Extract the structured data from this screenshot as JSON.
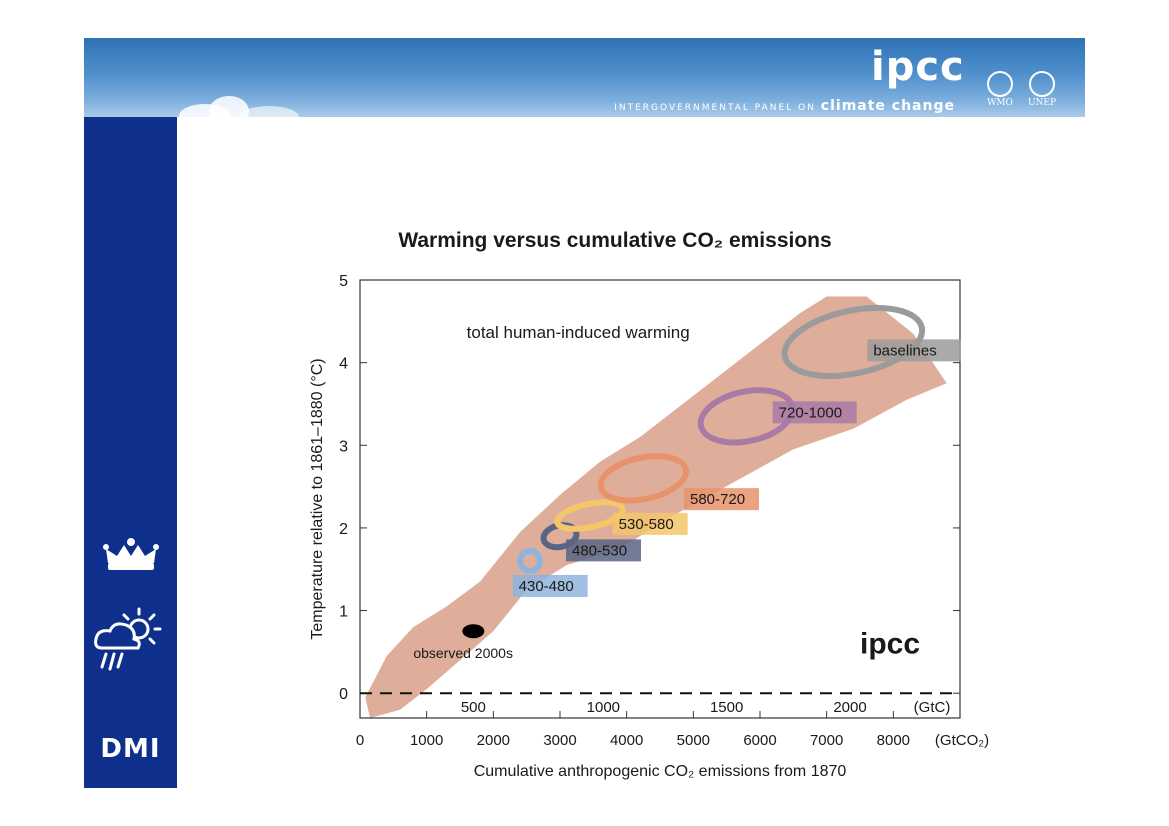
{
  "header": {
    "logo_text": "ipcc",
    "org_name": "INTERGOVERNMENTAL PANEL ON",
    "org_name_cc": "climate change",
    "partners": [
      "WMO",
      "UNEP"
    ]
  },
  "sidebar": {
    "logo_text": "DMI"
  },
  "chart_data": {
    "type": "scatter",
    "title": "Warming versus cumulative CO₂ emissions",
    "xlabel": "Cumulative anthropogenic CO₂ emissions from 1870",
    "ylabel": "Temperature relative to 1861–1880 (°C)",
    "xlim": [
      0,
      9000
    ],
    "ylim": [
      -0.3,
      5
    ],
    "x_ticks": [
      0,
      1000,
      2000,
      3000,
      4000,
      5000,
      6000,
      7000,
      8000
    ],
    "x_unit": "(GtCO₂)",
    "y_ticks": [
      0,
      1,
      2,
      3,
      4,
      5
    ],
    "secondary_x_ticks": [
      "500",
      "1000",
      "1500",
      "2000"
    ],
    "secondary_x_unit": "(GtC)",
    "band_label": "total human-induced warming",
    "band_color": "#d9a08a",
    "scenarios": [
      {
        "name": "430-480",
        "x": 2550,
        "y": 1.6,
        "rx": 150,
        "ry": 0.12,
        "color": "#8fb4dc"
      },
      {
        "name": "480-530",
        "x": 3000,
        "y": 1.9,
        "rx": 250,
        "ry": 0.13,
        "color": "#5a6585"
      },
      {
        "name": "530-580",
        "x": 3450,
        "y": 2.15,
        "rx": 500,
        "ry": 0.14,
        "color": "#f5c66a"
      },
      {
        "name": "580-720",
        "x": 4250,
        "y": 2.6,
        "rx": 650,
        "ry": 0.25,
        "color": "#e8926b"
      },
      {
        "name": "720-1000",
        "x": 5800,
        "y": 3.35,
        "rx": 700,
        "ry": 0.3,
        "color": "#a97aa5"
      },
      {
        "name": "baselines",
        "x": 7400,
        "y": 4.25,
        "rx": 1050,
        "ry": 0.38,
        "color": "#9b9b9b"
      }
    ],
    "observed": {
      "name": "observed 2000s",
      "x": 1700,
      "y": 0.75
    },
    "zero_line": "dashed",
    "watermark": "ipcc"
  }
}
